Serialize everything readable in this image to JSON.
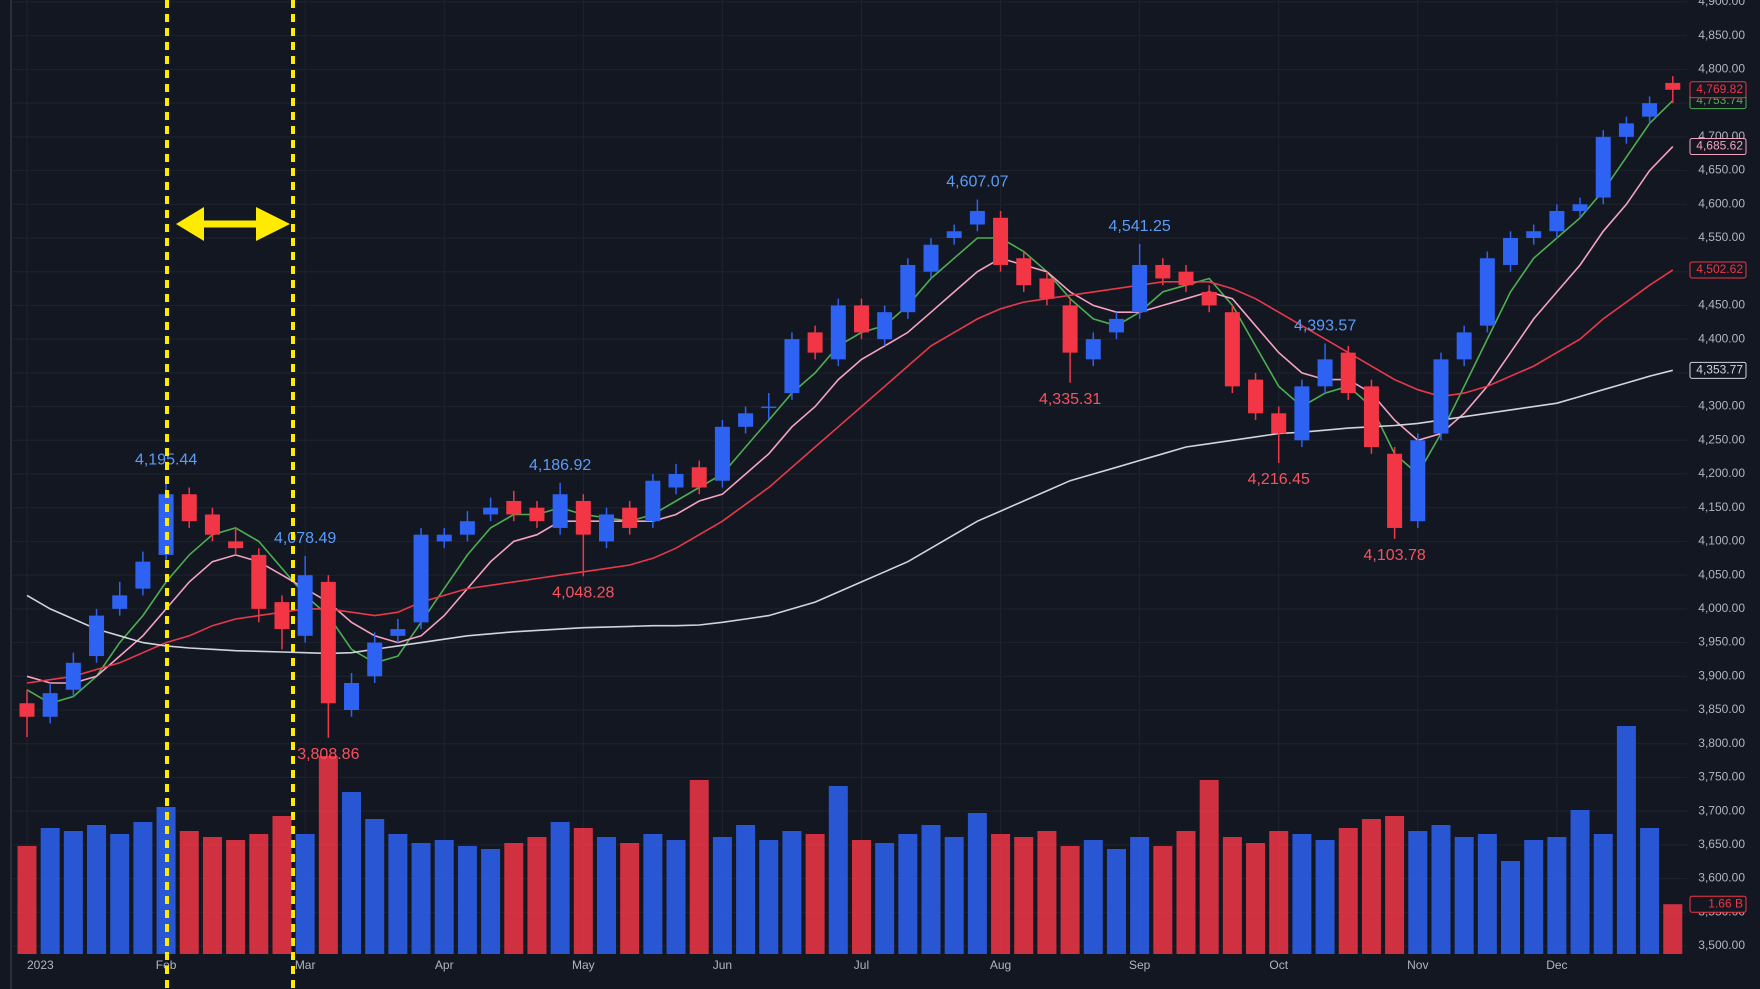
{
  "chart_data": {
    "type": "candlestick",
    "categories": [
      "2023",
      null,
      null,
      null,
      null,
      null,
      "Feb",
      null,
      null,
      null,
      null,
      null,
      "Mar",
      null,
      null,
      null,
      null,
      null,
      "Apr",
      null,
      null,
      null,
      null,
      null,
      "May",
      null,
      null,
      null,
      null,
      null,
      "Jun",
      null,
      null,
      null,
      null,
      null,
      "Jul",
      null,
      null,
      null,
      null,
      null,
      "Aug",
      null,
      null,
      null,
      null,
      null,
      "Sep",
      null,
      null,
      null,
      null,
      null,
      "Oct",
      null,
      null,
      null,
      null,
      null,
      "Nov",
      null,
      null,
      null,
      null,
      null,
      "Dec",
      null,
      null,
      null,
      null,
      null
    ],
    "open": [
      3860,
      3840,
      3880,
      3930,
      4000,
      4030,
      4080,
      4170,
      4140,
      4100,
      4080,
      4010,
      3960,
      4040,
      3850,
      3900,
      3960,
      3980,
      4100,
      4110,
      4140,
      4160,
      4150,
      4120,
      4160,
      4100,
      4150,
      4130,
      4180,
      4210,
      4190,
      4270,
      4300,
      4320,
      4410,
      4370,
      4450,
      4400,
      4440,
      4500,
      4550,
      4570,
      4580,
      4520,
      4490,
      4450,
      4370,
      4410,
      4440,
      4510,
      4500,
      4470,
      4440,
      4340,
      4290,
      4250,
      4330,
      4380,
      4330,
      4230,
      4130,
      4260,
      4370,
      4420,
      4510,
      4550,
      4560,
      4590,
      4610,
      4700,
      4730,
      4780
    ],
    "high": [
      3880,
      3890,
      3935,
      4000,
      4040,
      4085,
      4195.44,
      4180,
      4150,
      4120,
      4090,
      4020,
      4078.49,
      4050,
      3905,
      3965,
      3985,
      4120,
      4120,
      4145,
      4165,
      4175,
      4160,
      4186.92,
      4170,
      4150,
      4160,
      4200,
      4215,
      4220,
      4280,
      4300,
      4320,
      4410,
      4420,
      4460,
      4460,
      4450,
      4520,
      4550,
      4570,
      4607.07,
      4590,
      4530,
      4500,
      4460,
      4410,
      4440,
      4541.25,
      4520,
      4510,
      4480,
      4450,
      4350,
      4300,
      4340,
      4393.57,
      4390,
      4340,
      4240,
      4260,
      4380,
      4420,
      4530,
      4560,
      4570,
      4600,
      4610,
      4710,
      4730,
      4760,
      4790
    ],
    "low": [
      3810,
      3830,
      3870,
      3920,
      3990,
      4020,
      4070,
      4120,
      4100,
      4080,
      3980,
      3940,
      3950,
      3808.86,
      3840,
      3890,
      3950,
      3970,
      4090,
      4100,
      4130,
      4130,
      4120,
      4110,
      4048.28,
      4090,
      4110,
      4120,
      4170,
      4170,
      4180,
      4260,
      4280,
      4310,
      4370,
      4360,
      4400,
      4390,
      4430,
      4490,
      4540,
      4560,
      4500,
      4470,
      4450,
      4335.31,
      4360,
      4400,
      4430,
      4480,
      4470,
      4440,
      4320,
      4280,
      4216.45,
      4240,
      4320,
      4310,
      4230,
      4103.78,
      4120,
      4250,
      4360,
      4410,
      4500,
      4540,
      4550,
      4580,
      4600,
      4690,
      4720,
      4750
    ],
    "close": [
      3840,
      3875,
      3920,
      3990,
      4020,
      4070,
      4170,
      4130,
      4110,
      4090,
      4000,
      3970,
      4050,
      3860,
      3890,
      3950,
      3970,
      4110,
      4110,
      4130,
      4150,
      4140,
      4130,
      4170,
      4110,
      4140,
      4120,
      4190,
      4200,
      4180,
      4270,
      4290,
      4300,
      4400,
      4380,
      4450,
      4410,
      4440,
      4510,
      4540,
      4560,
      4590,
      4510,
      4480,
      4460,
      4380,
      4400,
      4430,
      4510,
      4490,
      4480,
      4450,
      4330,
      4290,
      4260,
      4330,
      4370,
      4320,
      4240,
      4120,
      4250,
      4370,
      4410,
      4520,
      4550,
      4560,
      4590,
      4600,
      4700,
      4720,
      4750,
      4769.82
    ],
    "close_last_label": "4,769.82",
    "color_up": "#2e62f2",
    "color_down": "#f23645",
    "volume": {
      "values": [
        3.6,
        4.2,
        4.1,
        4.3,
        4.0,
        4.4,
        4.9,
        4.1,
        3.9,
        3.8,
        4.0,
        4.6,
        4.0,
        6.6,
        5.4,
        4.5,
        4.0,
        3.7,
        3.8,
        3.6,
        3.5,
        3.7,
        3.9,
        4.4,
        4.2,
        3.9,
        3.7,
        4.0,
        3.8,
        5.8,
        3.9,
        4.3,
        3.8,
        4.1,
        4.0,
        5.6,
        3.8,
        3.7,
        4.0,
        4.3,
        3.9,
        4.7,
        4.0,
        3.9,
        4.1,
        3.6,
        3.8,
        3.5,
        3.9,
        3.6,
        4.1,
        5.8,
        3.9,
        3.7,
        4.1,
        4.0,
        3.8,
        4.2,
        4.5,
        4.6,
        4.1,
        4.3,
        3.9,
        4.0,
        3.1,
        3.8,
        3.9,
        4.8,
        4.0,
        7.6,
        4.2,
        1.66
      ],
      "last_label": "1.66 B",
      "vlim": [
        0,
        8
      ]
    },
    "series": [
      {
        "color": "#4caf50",
        "last_label": "4,753.74",
        "values": [
          3880,
          3860,
          3870,
          3900,
          3950,
          3990,
          4040,
          4080,
          4110,
          4120,
          4100,
          4060,
          4020,
          3990,
          3940,
          3920,
          3930,
          3980,
          4030,
          4080,
          4120,
          4140,
          4140,
          4150,
          4140,
          4135,
          4130,
          4140,
          4160,
          4180,
          4200,
          4240,
          4280,
          4320,
          4350,
          4390,
          4410,
          4420,
          4450,
          4490,
          4520,
          4550,
          4550,
          4530,
          4500,
          4460,
          4430,
          4420,
          4440,
          4470,
          4480,
          4490,
          4450,
          4390,
          4330,
          4300,
          4320,
          4330,
          4300,
          4230,
          4200,
          4260,
          4330,
          4400,
          4470,
          4520,
          4550,
          4580,
          4620,
          4670,
          4720,
          4753.74
        ]
      },
      {
        "color": "#f5a3c0",
        "last_label": "4,685.62",
        "values": [
          3900,
          3890,
          3890,
          3900,
          3930,
          3960,
          4000,
          4040,
          4070,
          4080,
          4070,
          4050,
          4030,
          4010,
          3980,
          3960,
          3950,
          3960,
          3990,
          4030,
          4070,
          4100,
          4110,
          4130,
          4130,
          4130,
          4130,
          4130,
          4140,
          4160,
          4170,
          4200,
          4230,
          4270,
          4300,
          4340,
          4370,
          4390,
          4410,
          4440,
          4470,
          4500,
          4520,
          4510,
          4500,
          4470,
          4450,
          4440,
          4440,
          4450,
          4460,
          4470,
          4460,
          4420,
          4380,
          4350,
          4340,
          4340,
          4320,
          4280,
          4250,
          4260,
          4290,
          4330,
          4380,
          4430,
          4470,
          4510,
          4560,
          4600,
          4650,
          4685.62
        ]
      },
      {
        "color": "#e8394a",
        "last_label": "4,502.62",
        "values": [
          3890,
          3895,
          3900,
          3910,
          3920,
          3935,
          3950,
          3960,
          3975,
          3985,
          3990,
          3995,
          4000,
          4000,
          3995,
          3990,
          3995,
          4010,
          4020,
          4030,
          4035,
          4040,
          4045,
          4050,
          4055,
          4060,
          4065,
          4075,
          4090,
          4110,
          4130,
          4155,
          4180,
          4210,
          4240,
          4270,
          4300,
          4330,
          4360,
          4390,
          4410,
          4430,
          4445,
          4455,
          4460,
          4465,
          4470,
          4475,
          4480,
          4485,
          4485,
          4485,
          4475,
          4460,
          4440,
          4420,
          4400,
          4380,
          4360,
          4340,
          4325,
          4315,
          4320,
          4330,
          4345,
          4360,
          4380,
          4400,
          4430,
          4455,
          4480,
          4502.62
        ]
      },
      {
        "color": "#d1d4dc",
        "last_label": "4,353.77",
        "values": [
          4020,
          4000,
          3985,
          3970,
          3960,
          3950,
          3945,
          3942,
          3940,
          3938,
          3937,
          3936,
          3935,
          3934,
          3935,
          3940,
          3945,
          3950,
          3955,
          3960,
          3963,
          3966,
          3968,
          3970,
          3972,
          3973,
          3974,
          3975,
          3975,
          3976,
          3980,
          3985,
          3990,
          4000,
          4010,
          4025,
          4040,
          4055,
          4070,
          4090,
          4110,
          4130,
          4145,
          4160,
          4175,
          4190,
          4200,
          4210,
          4220,
          4230,
          4240,
          4245,
          4250,
          4255,
          4260,
          4262,
          4265,
          4268,
          4270,
          4272,
          4275,
          4280,
          4285,
          4290,
          4295,
          4300,
          4305,
          4315,
          4325,
          4335,
          4345,
          4353.77
        ]
      }
    ],
    "annotations": [
      {
        "value": 4195.44,
        "label": "4,195.44",
        "at": 6,
        "kind": "high"
      },
      {
        "value": 4078.49,
        "label": "4,078.49",
        "at": 12,
        "kind": "high"
      },
      {
        "value": 4186.92,
        "label": "4,186.92",
        "at": 23,
        "kind": "high"
      },
      {
        "value": 4607.07,
        "label": "4,607.07",
        "at": 41,
        "kind": "high"
      },
      {
        "value": 4541.25,
        "label": "4,541.25",
        "at": 48,
        "kind": "high"
      },
      {
        "value": 4393.57,
        "label": "4,393.57",
        "at": 56,
        "kind": "high"
      },
      {
        "value": 3808.86,
        "label": "3,808.86",
        "at": 13,
        "kind": "low"
      },
      {
        "value": 4048.28,
        "label": "4,048.28",
        "at": 24,
        "kind": "low"
      },
      {
        "value": 4335.31,
        "label": "4,335.31",
        "at": 45,
        "kind": "low"
      },
      {
        "value": 4216.45,
        "label": "4,216.45",
        "at": 54,
        "kind": "low"
      },
      {
        "value": 4103.78,
        "label": "4,103.78",
        "at": 59,
        "kind": "low"
      }
    ],
    "ylim": [
      3500,
      4900
    ],
    "yticks": [
      {
        "value": 3500,
        "label": "3,500.00"
      },
      {
        "value": 3550,
        "label": "3,550.00"
      },
      {
        "value": 3600,
        "label": "3,600.00"
      },
      {
        "value": 3650,
        "label": "3,650.00"
      },
      {
        "value": 3700,
        "label": "3,700.00"
      },
      {
        "value": 3750,
        "label": "3,750.00"
      },
      {
        "value": 3800,
        "label": "3,800.00"
      },
      {
        "value": 3850,
        "label": "3,850.00"
      },
      {
        "value": 3900,
        "label": "3,900.00"
      },
      {
        "value": 3950,
        "label": "3,950.00"
      },
      {
        "value": 4000,
        "label": "4,000.00"
      },
      {
        "value": 4050,
        "label": "4,050.00"
      },
      {
        "value": 4100,
        "label": "4,100.00"
      },
      {
        "value": 4150,
        "label": "4,150.00"
      },
      {
        "value": 4200,
        "label": "4,200.00"
      },
      {
        "value": 4250,
        "label": "4,250.00"
      },
      {
        "value": 4300,
        "label": "4,300.00"
      },
      {
        "value": 4350,
        "label": "4,350.00"
      },
      {
        "value": 4400,
        "label": "4,400.00"
      },
      {
        "value": 4450,
        "label": "4,450.00"
      },
      {
        "value": 4500,
        "label": "4,500.00"
      },
      {
        "value": 4550,
        "label": "4,550.00"
      },
      {
        "value": 4600,
        "label": "4,600.00"
      },
      {
        "value": 4650,
        "label": "4,650.00"
      },
      {
        "value": 4700,
        "label": "4,700.00"
      },
      {
        "value": 4750,
        "label": "4,750.00"
      },
      {
        "value": 4800,
        "label": "4,800.00"
      },
      {
        "value": 4850,
        "label": "4,850.00"
      },
      {
        "value": 4900,
        "label": "4,900.00"
      }
    ],
    "grid": true
  }
}
